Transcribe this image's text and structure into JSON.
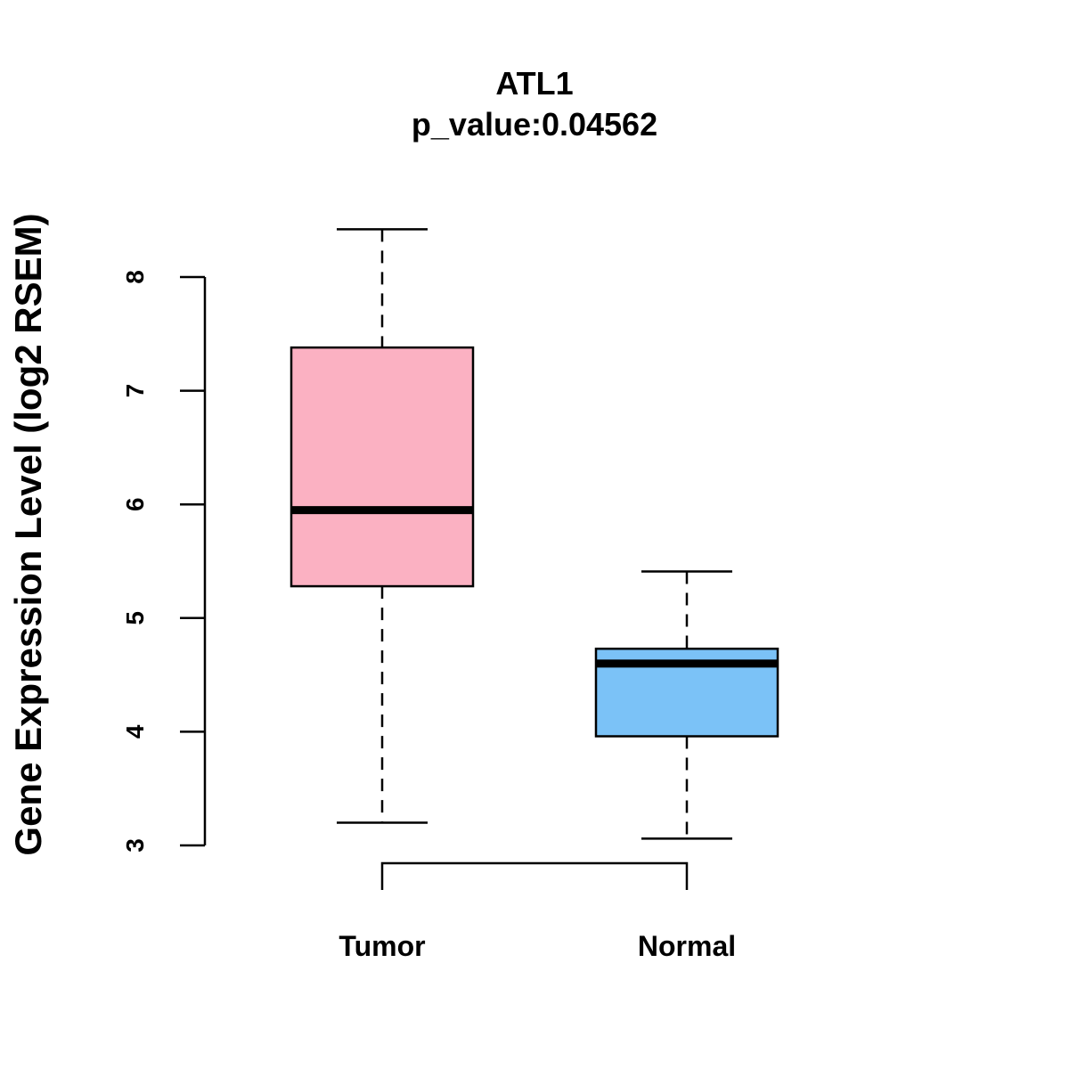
{
  "chart_data": {
    "type": "boxplot",
    "title": "ATL1",
    "subtitle": "p_value:0.04562",
    "xlabel": "",
    "ylabel": "Gene Expression Level (log2 RSEM)",
    "ylim": [
      3,
      8
    ],
    "yticks": [
      3,
      4,
      5,
      6,
      7,
      8
    ],
    "categories": [
      "Tumor",
      "Normal"
    ],
    "boxes": [
      {
        "name": "Tumor",
        "whisker_low": 3.2,
        "q1": 5.28,
        "median": 5.95,
        "q3": 7.38,
        "whisker_high": 8.42,
        "color": "#FBB1C2"
      },
      {
        "name": "Normal",
        "whisker_low": 3.06,
        "q1": 3.96,
        "median": 4.6,
        "q3": 4.73,
        "whisker_high": 5.41,
        "color": "#7BC2F7"
      }
    ],
    "significance_bracket": [
      "Tumor",
      "Normal"
    ],
    "grid": false,
    "legend": "none"
  }
}
